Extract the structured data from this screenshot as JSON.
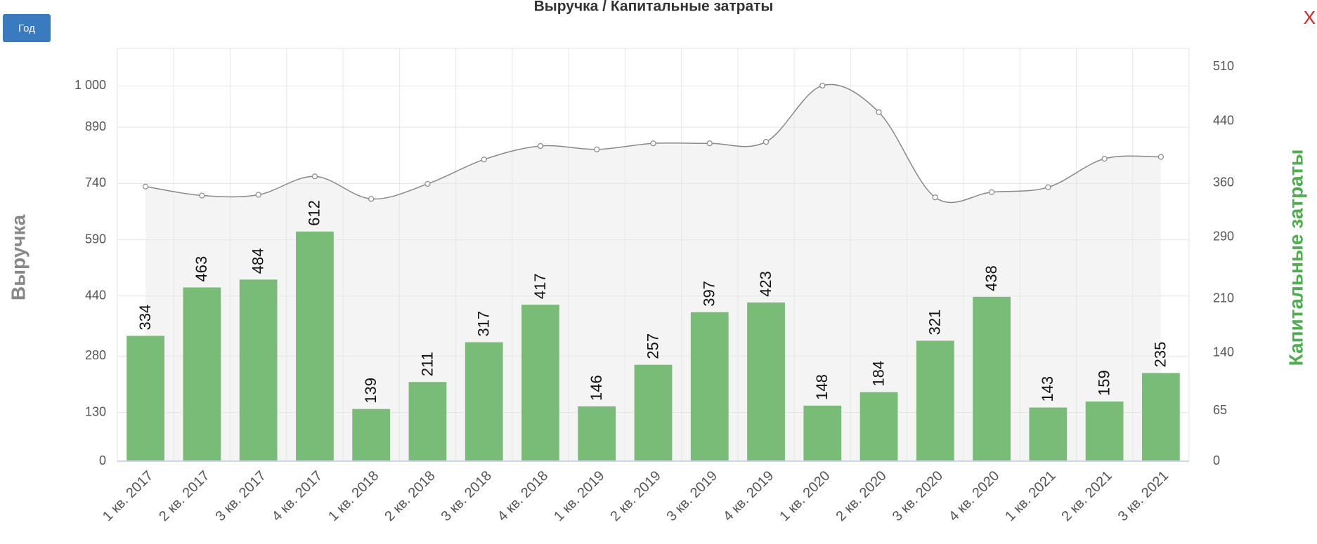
{
  "ui": {
    "button": "Год",
    "close": "X"
  },
  "chart_data": {
    "type": "bar",
    "title": "Выручка / Капитальные затраты",
    "y_label": "Выручка",
    "y2_label": "Капитальные затраты",
    "categories": [
      "1 кв. 2017",
      "2 кв. 2017",
      "3 кв. 2017",
      "4 кв. 2017",
      "1 кв. 2018",
      "2 кв. 2018",
      "3 кв. 2018",
      "4 кв. 2018",
      "1 кв. 2019",
      "2 кв. 2019",
      "3 кв. 2019",
      "4 кв. 2019",
      "1 кв. 2020",
      "2 кв. 2020",
      "3 кв. 2020",
      "4 кв. 2020",
      "1 кв. 2021",
      "2 кв. 2021",
      "3 кв. 2021"
    ],
    "series": [
      {
        "type": "bar",
        "color": "#79bc78",
        "values": [
          334,
          463,
          484,
          612,
          139,
          211,
          317,
          417,
          146,
          257,
          397,
          423,
          148,
          184,
          321,
          438,
          143,
          159,
          235
        ]
      },
      {
        "type": "line",
        "color": "#888888",
        "values": [
          732,
          708,
          710,
          759,
          699,
          739,
          804,
          840,
          831,
          847,
          847,
          851,
          1001,
          930,
          703,
          717,
          730,
          806,
          811
        ]
      }
    ],
    "ylim": [
      0,
      1100
    ],
    "yticks": [
      0,
      130,
      280,
      440,
      590,
      740,
      890,
      {
        "value": 1000,
        "label": "1 000"
      }
    ],
    "y2lim": [
      0,
      534
    ],
    "y2ticks": [
      0,
      65,
      140,
      210,
      290,
      360,
      440,
      510
    ],
    "grid": true
  }
}
